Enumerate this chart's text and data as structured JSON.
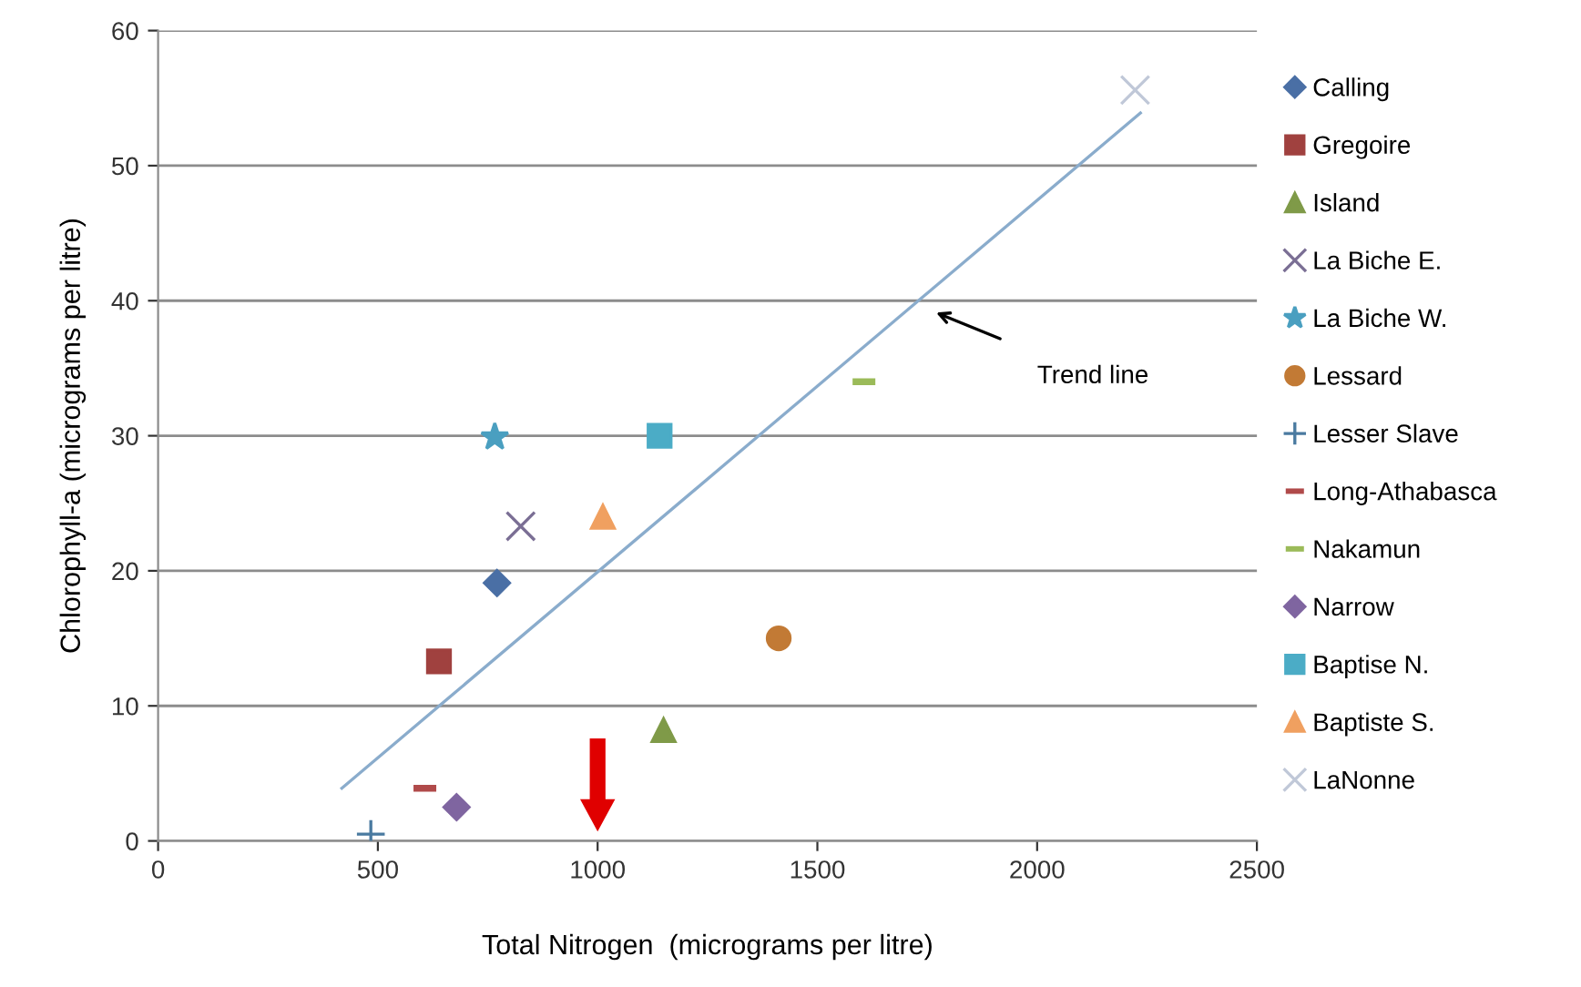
{
  "chart_data": {
    "type": "scatter",
    "xlabel": "Total Nitrogen  (micrograms per litre)",
    "ylabel": "Chlorophyll-a (micrograms per litre)",
    "xlim": [
      0,
      2500
    ],
    "xticks": [
      0,
      500,
      1000,
      1500,
      2000,
      2500
    ],
    "ylim": [
      0,
      60
    ],
    "yticks": [
      0,
      10,
      20,
      30,
      40,
      50,
      60
    ],
    "grid": "y",
    "legend": "right",
    "series": [
      {
        "name": "Calling",
        "color": "#4a6fa5",
        "marker": "diamond",
        "x": [
          771
        ],
        "values": [
          19.1
        ]
      },
      {
        "name": "Gregoire",
        "color": "#a0413f",
        "marker": "square",
        "x": [
          639
        ],
        "values": [
          13.3
        ]
      },
      {
        "name": "Island",
        "color": "#7f9a48",
        "marker": "triangle",
        "x": [
          1150
        ],
        "values": [
          8.2
        ]
      },
      {
        "name": "La Biche E.",
        "color": "#7a6e94",
        "marker": "cross",
        "x": [
          825
        ],
        "values": [
          23.3
        ]
      },
      {
        "name": "La Biche W.",
        "color": "#4a9fc0",
        "marker": "star",
        "x": [
          766
        ],
        "values": [
          29.9
        ]
      },
      {
        "name": "Lessard",
        "color": "#c27a35",
        "marker": "circle",
        "x": [
          1412
        ],
        "values": [
          15.0
        ]
      },
      {
        "name": "Lesser Slave",
        "color": "#4a7aa0",
        "marker": "plus",
        "x": [
          484
        ],
        "values": [
          0.5
        ]
      },
      {
        "name": "Long-Athabasca",
        "color": "#b04a4a",
        "x": [
          607
        ],
        "values": [
          3.9
        ]
      },
      {
        "name": "Nakamun",
        "color": "#9bbb59",
        "x": [
          1606
        ],
        "values": [
          34.0
        ]
      },
      {
        "name": "Narrow",
        "color": "#7f65a0",
        "marker": "diamond",
        "x": [
          679
        ],
        "values": [
          2.5
        ]
      },
      {
        "name": "Baptise N.",
        "color": "#4bacc6",
        "marker": "square",
        "x": [
          1141
        ],
        "values": [
          30.0
        ]
      },
      {
        "name": "Baptiste S.",
        "color": "#f0a060",
        "marker": "triangle",
        "x": [
          1012
        ],
        "values": [
          24.0
        ]
      },
      {
        "name": "LaNonne",
        "color": "#c0c8d8",
        "marker": "cross",
        "x": [
          2223
        ],
        "values": [
          55.6
        ]
      },
      {
        "type": "line",
        "color": "#8aaccc",
        "marker": "none",
        "x": [
          418,
          2235
        ],
        "values": [
          3.9,
          53.9
        ]
      }
    ],
    "annotations": [
      "Trend line"
    ]
  }
}
